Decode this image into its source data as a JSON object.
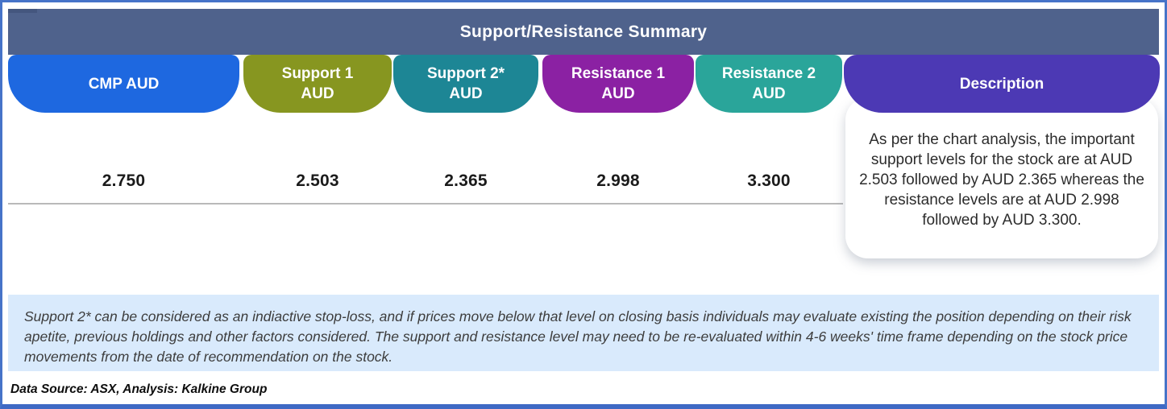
{
  "title": "Support/Resistance Summary",
  "table": {
    "columns": [
      {
        "label": "CMP AUD",
        "value": "2.750",
        "color": "#1e68e0"
      },
      {
        "label": "Support 1 AUD",
        "value": "2.503",
        "color": "#879620"
      },
      {
        "label": "Support 2* AUD",
        "value": "2.365",
        "color": "#1d8695"
      },
      {
        "label": "Resistance 1 AUD",
        "value": "2.998",
        "color": "#8b21a3"
      },
      {
        "label": "Resistance 2 AUD",
        "value": "3.300",
        "color": "#2aa59a"
      }
    ],
    "description": {
      "label": "Description",
      "color": "#4c39b4",
      "text": "As per the chart analysis, the important support levels for the stock are at AUD 2.503 followed by AUD 2.365 whereas the resistance levels are at AUD 2.998 followed by AUD 3.300."
    }
  },
  "note": "Support 2* can be considered as an indiactive stop-loss, and if prices move below that level on closing basis individuals may evaluate existing the position depending on their risk apetite, previous holdings and other factors considered. The support and resistance level may need to be re-evaluated within 4-6 weeks' time frame depending on the stock price movements from  the date of recommendation on the stock.",
  "data_source": "Data Source: ASX, Analysis: Kalkine Group",
  "colors": {
    "frame_border": "#4673c8",
    "title_bar": "#4f628c",
    "note_background": "#d9eafc"
  },
  "chart_data": {
    "type": "table",
    "title": "Support/Resistance Summary",
    "categories": [
      "CMP AUD",
      "Support 1 AUD",
      "Support 2* AUD",
      "Resistance 1 AUD",
      "Resistance 2 AUD"
    ],
    "values": [
      2.75,
      2.503,
      2.365,
      2.998,
      3.3
    ]
  }
}
